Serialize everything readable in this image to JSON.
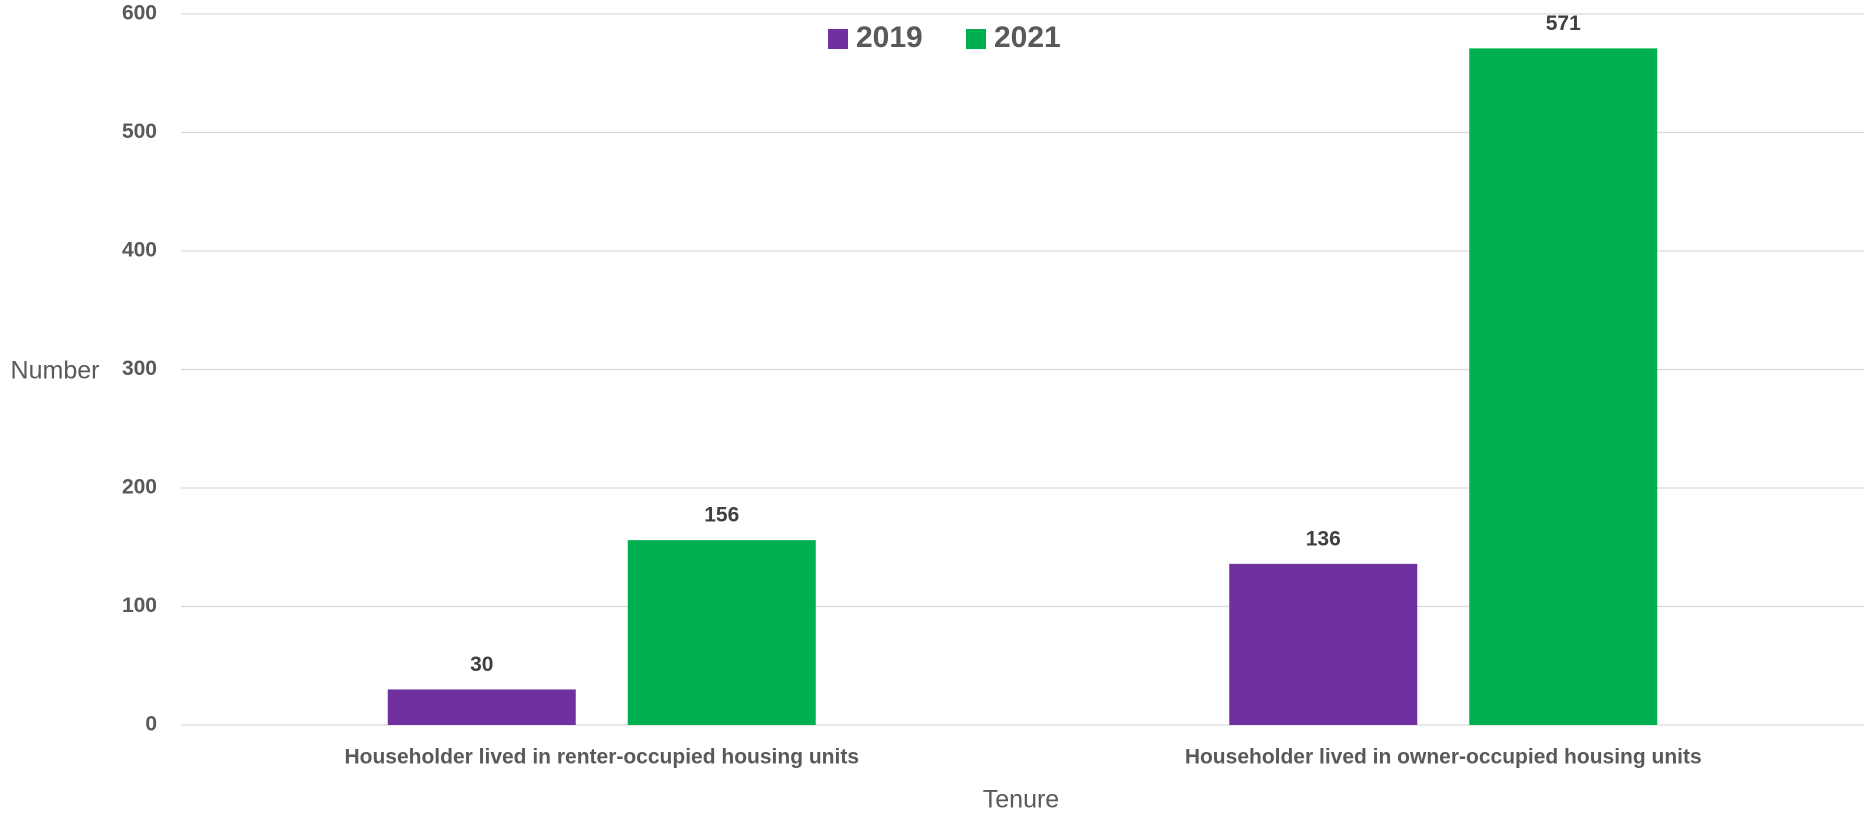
{
  "chart_data": {
    "type": "bar",
    "x_label": "Tenure",
    "y_label": "Number",
    "categories": [
      "Householder lived in renter-occupied housing units",
      "Householder lived in owner-occupied housing units"
    ],
    "series": [
      {
        "name": "2019",
        "color": "#7030a0",
        "values": [
          30,
          136
        ]
      },
      {
        "name": "2021",
        "color": "#00b050",
        "values": [
          156,
          571
        ]
      }
    ],
    "ylim": [
      0,
      600
    ],
    "yticks": [
      0,
      100,
      200,
      300,
      400,
      500,
      600
    ],
    "grid": true,
    "legend": "top"
  }
}
